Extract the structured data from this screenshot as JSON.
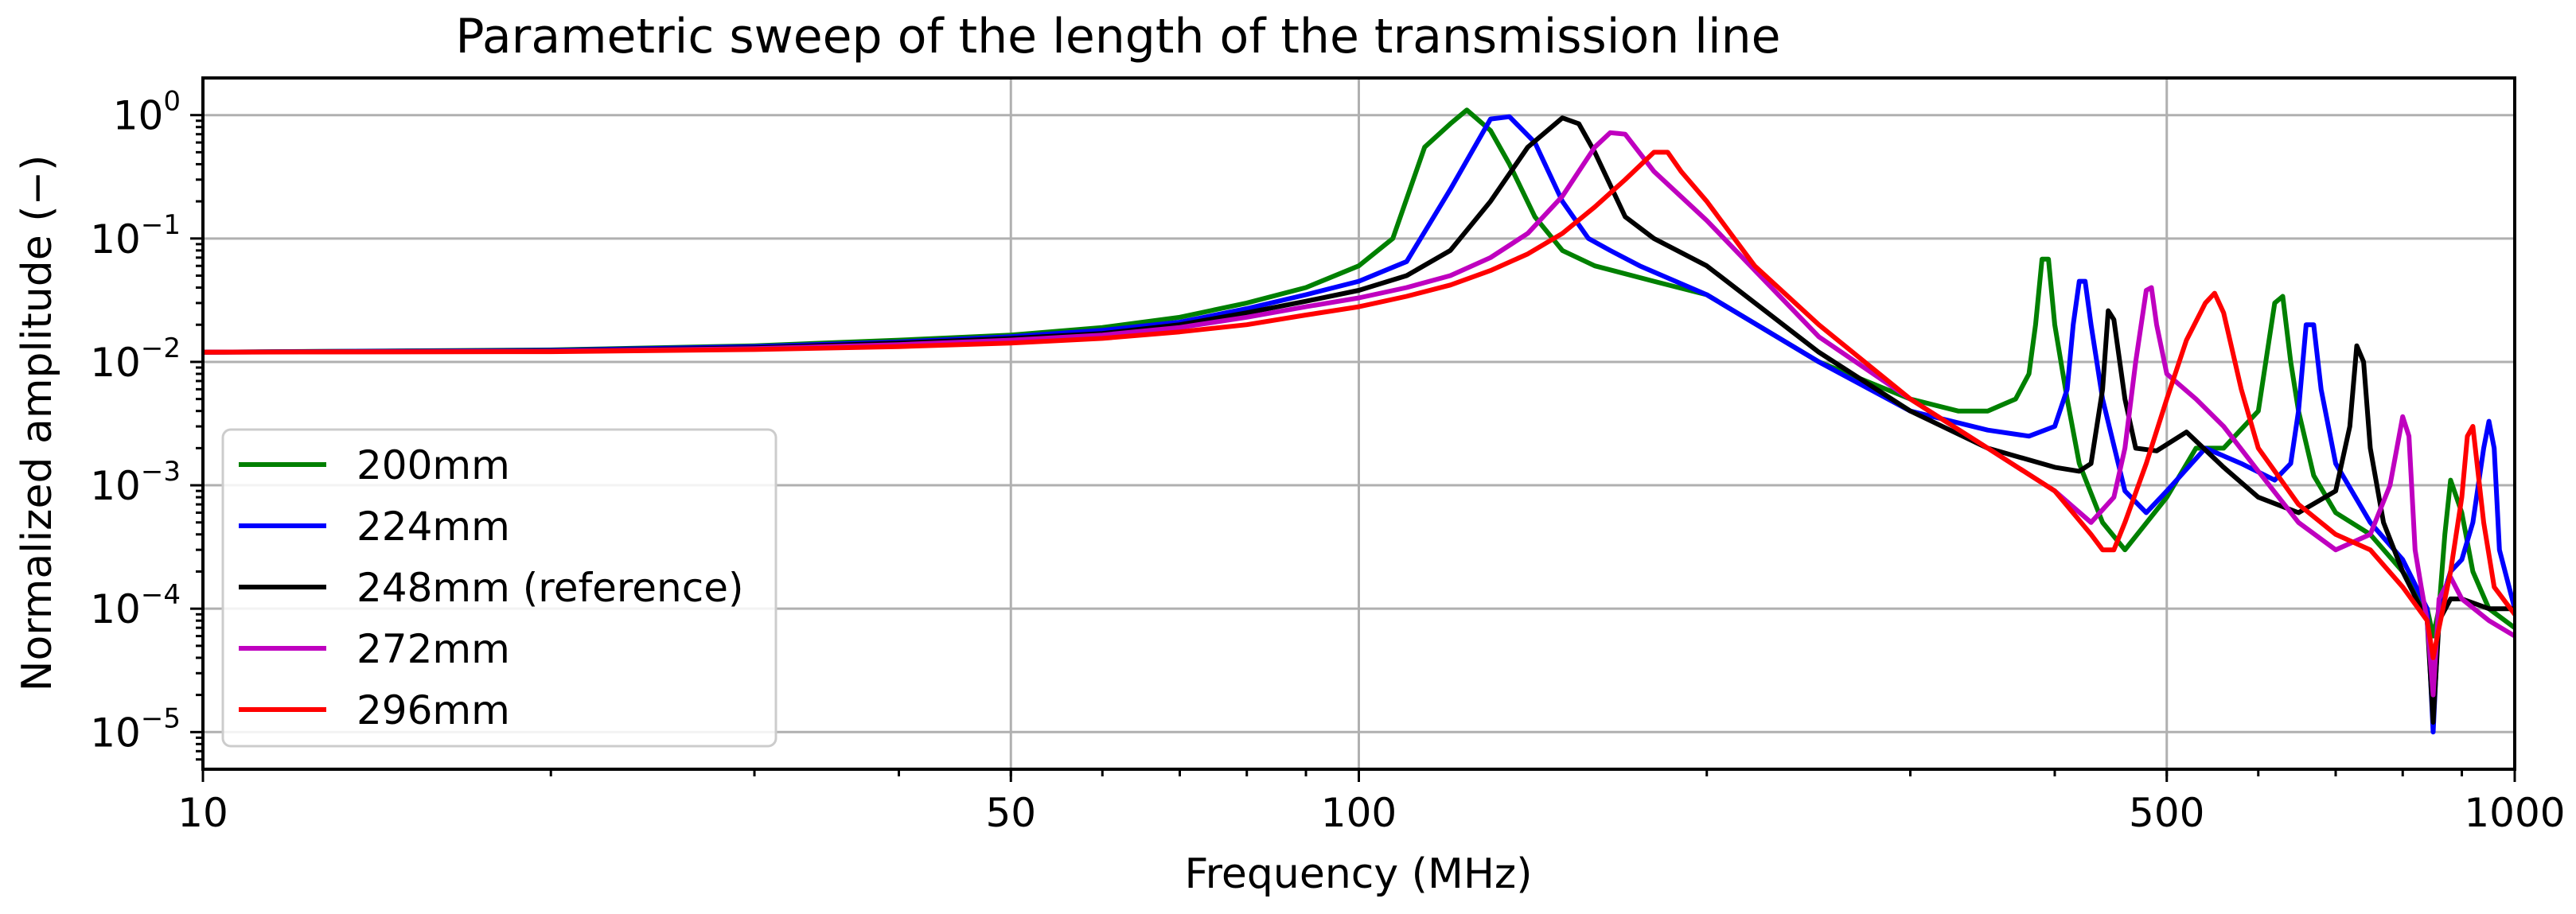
{
  "chart_data": {
    "type": "line",
    "title": "Parametric sweep of the length of the transmission line",
    "xlabel": "Frequency (MHz)",
    "ylabel": "Normalized amplitude (−)",
    "xscale": "log",
    "yscale": "log",
    "xlim": [
      10,
      1000
    ],
    "ylim": [
      5e-06,
      2
    ],
    "grid": true,
    "legend_position": "lower-left",
    "xticks": [
      {
        "value": 10,
        "label": "10"
      },
      {
        "value": 50,
        "label": "50"
      },
      {
        "value": 100,
        "label": "100"
      },
      {
        "value": 500,
        "label": "500"
      },
      {
        "value": 1000,
        "label": "1000"
      }
    ],
    "yticks": [
      {
        "value": 1,
        "base": "10",
        "exp": "0"
      },
      {
        "value": 0.1,
        "base": "10",
        "exp": "−1"
      },
      {
        "value": 0.01,
        "base": "10",
        "exp": "−2"
      },
      {
        "value": 0.001,
        "base": "10",
        "exp": "−3"
      },
      {
        "value": 0.0001,
        "base": "10",
        "exp": "−4"
      },
      {
        "value": 1e-05,
        "base": "10",
        "exp": "−5"
      }
    ],
    "series": [
      {
        "name": "200mm",
        "color": "#008000",
        "x": [
          10,
          20,
          30,
          40,
          50,
          60,
          70,
          80,
          90,
          100,
          107,
          114,
          120,
          124,
          130,
          135,
          142,
          150,
          160,
          180,
          200,
          250,
          300,
          330,
          350,
          370,
          380,
          385,
          390,
          395,
          400,
          410,
          420,
          440,
          460,
          500,
          530,
          560,
          600,
          620,
          630,
          640,
          650,
          670,
          700,
          750,
          800,
          840,
          850,
          860,
          870,
          880,
          900,
          920,
          950,
          1000
        ],
        "y": [
          0.012,
          0.0125,
          0.0135,
          0.015,
          0.0165,
          0.019,
          0.023,
          0.03,
          0.04,
          0.06,
          0.1,
          0.55,
          0.85,
          1.1,
          0.75,
          0.4,
          0.15,
          0.08,
          0.06,
          0.045,
          0.035,
          0.01,
          0.005,
          0.004,
          0.004,
          0.005,
          0.008,
          0.02,
          0.068,
          0.068,
          0.02,
          0.005,
          0.0015,
          0.0005,
          0.0003,
          0.0008,
          0.002,
          0.002,
          0.004,
          0.03,
          0.034,
          0.01,
          0.004,
          0.0012,
          0.0006,
          0.0004,
          0.0002,
          0.0001,
          6e-05,
          0.0001,
          0.0004,
          0.0011,
          0.0006,
          0.0002,
          0.0001,
          7e-05
        ]
      },
      {
        "name": "224mm",
        "color": "#0000ff",
        "x": [
          10,
          20,
          30,
          40,
          50,
          60,
          70,
          80,
          90,
          100,
          110,
          120,
          130,
          135,
          142,
          150,
          158,
          165,
          175,
          200,
          250,
          300,
          350,
          380,
          400,
          410,
          415,
          420,
          425,
          430,
          440,
          460,
          480,
          500,
          540,
          580,
          620,
          640,
          650,
          660,
          670,
          680,
          700,
          750,
          800,
          840,
          850,
          860,
          880,
          900,
          920,
          940,
          950,
          960,
          970,
          1000
        ],
        "y": [
          0.012,
          0.0124,
          0.0133,
          0.0145,
          0.016,
          0.018,
          0.021,
          0.027,
          0.035,
          0.045,
          0.065,
          0.25,
          0.93,
          0.97,
          0.6,
          0.2,
          0.1,
          0.08,
          0.06,
          0.035,
          0.01,
          0.004,
          0.0028,
          0.0025,
          0.003,
          0.006,
          0.02,
          0.045,
          0.045,
          0.02,
          0.005,
          0.0009,
          0.0006,
          0.0009,
          0.002,
          0.0015,
          0.0011,
          0.0015,
          0.004,
          0.02,
          0.02,
          0.006,
          0.0015,
          0.0005,
          0.00025,
          0.0001,
          1e-05,
          0.0001,
          0.0002,
          0.00025,
          0.0005,
          0.002,
          0.0033,
          0.002,
          0.0003,
          0.0001
        ]
      },
      {
        "name": "248mm (reference)",
        "color": "#000000",
        "x": [
          10,
          20,
          30,
          40,
          50,
          60,
          70,
          80,
          90,
          100,
          110,
          120,
          130,
          140,
          150,
          155,
          160,
          170,
          180,
          200,
          250,
          300,
          350,
          400,
          420,
          430,
          440,
          445,
          450,
          460,
          470,
          490,
          520,
          560,
          600,
          650,
          700,
          720,
          730,
          740,
          750,
          770,
          800,
          840,
          850,
          860,
          880,
          900,
          950,
          1000
        ],
        "y": [
          0.012,
          0.0123,
          0.013,
          0.0142,
          0.0155,
          0.017,
          0.02,
          0.025,
          0.031,
          0.038,
          0.05,
          0.08,
          0.2,
          0.55,
          0.95,
          0.85,
          0.5,
          0.15,
          0.1,
          0.06,
          0.012,
          0.004,
          0.002,
          0.0014,
          0.0013,
          0.0015,
          0.006,
          0.026,
          0.022,
          0.005,
          0.002,
          0.0019,
          0.0027,
          0.0014,
          0.0008,
          0.0006,
          0.0009,
          0.003,
          0.0135,
          0.01,
          0.002,
          0.0005,
          0.0002,
          8e-05,
          1.2e-05,
          8e-05,
          0.00012,
          0.00012,
          0.0001,
          0.0001
        ]
      },
      {
        "name": "272mm",
        "color": "#bf00bf",
        "x": [
          10,
          20,
          30,
          40,
          50,
          60,
          70,
          80,
          90,
          100,
          110,
          120,
          130,
          140,
          150,
          160,
          165,
          170,
          180,
          200,
          250,
          300,
          350,
          400,
          430,
          450,
          460,
          470,
          480,
          485,
          490,
          500,
          530,
          560,
          600,
          650,
          700,
          750,
          780,
          800,
          810,
          820,
          830,
          840,
          850,
          860,
          880,
          900,
          950,
          1000
        ],
        "y": [
          0.012,
          0.0122,
          0.0128,
          0.0138,
          0.015,
          0.0165,
          0.019,
          0.023,
          0.028,
          0.033,
          0.04,
          0.05,
          0.07,
          0.11,
          0.22,
          0.55,
          0.72,
          0.7,
          0.35,
          0.14,
          0.016,
          0.005,
          0.002,
          0.0009,
          0.0005,
          0.0008,
          0.002,
          0.01,
          0.038,
          0.04,
          0.02,
          0.008,
          0.005,
          0.003,
          0.0013,
          0.0005,
          0.0003,
          0.0004,
          0.001,
          0.0036,
          0.0025,
          0.0003,
          0.00015,
          8e-05,
          2e-05,
          0.00012,
          0.00018,
          0.00012,
          8e-05,
          6e-05
        ]
      },
      {
        "name": "296mm",
        "color": "#ff0000",
        "x": [
          10,
          20,
          30,
          40,
          50,
          60,
          70,
          80,
          90,
          100,
          110,
          120,
          130,
          140,
          150,
          160,
          170,
          180,
          185,
          190,
          200,
          220,
          250,
          300,
          350,
          400,
          430,
          440,
          450,
          460,
          480,
          500,
          520,
          540,
          550,
          560,
          580,
          600,
          650,
          700,
          750,
          800,
          840,
          850,
          860,
          880,
          900,
          910,
          920,
          940,
          960,
          1000
        ],
        "y": [
          0.012,
          0.0121,
          0.0126,
          0.0133,
          0.0142,
          0.0155,
          0.0175,
          0.02,
          0.024,
          0.028,
          0.034,
          0.042,
          0.055,
          0.075,
          0.11,
          0.18,
          0.3,
          0.5,
          0.5,
          0.35,
          0.2,
          0.06,
          0.02,
          0.005,
          0.002,
          0.0009,
          0.0004,
          0.0003,
          0.0003,
          0.0005,
          0.0015,
          0.005,
          0.015,
          0.03,
          0.036,
          0.025,
          0.006,
          0.002,
          0.0007,
          0.0004,
          0.0003,
          0.00015,
          8e-05,
          4e-05,
          7e-05,
          0.0002,
          0.0008,
          0.0025,
          0.003,
          0.0005,
          0.00015,
          9e-05
        ]
      }
    ]
  }
}
